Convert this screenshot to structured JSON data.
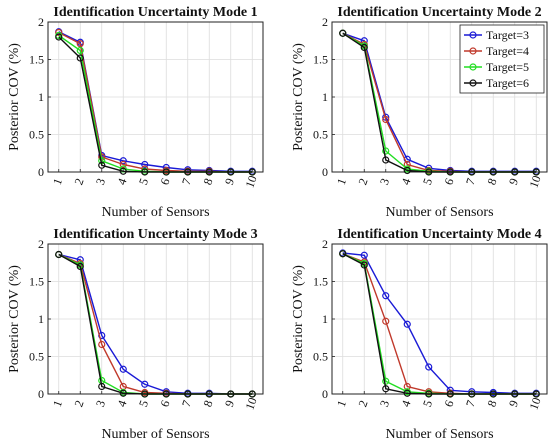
{
  "legend": {
    "placement": "top-right",
    "entries": [
      {
        "label": "Target=3",
        "color": "#1a1ad6"
      },
      {
        "label": "Target=4",
        "color": "#c0392b"
      },
      {
        "label": "Target=5",
        "color": "#22dd22"
      },
      {
        "label": "Target=6",
        "color": "#111111"
      }
    ]
  },
  "chart_data": [
    {
      "type": "line",
      "title": "Identification Uncertainty Mode 1",
      "xlabel": "Number of Sensors",
      "ylabel": "Posterior COV (%)",
      "ylim": [
        0,
        2
      ],
      "xlim": [
        0.5,
        10.5
      ],
      "x": [
        1,
        2,
        3,
        4,
        5,
        6,
        7,
        8,
        9,
        10
      ],
      "xticks": [
        "1",
        "2",
        "3",
        "4",
        "5",
        "6",
        "7",
        "8",
        "9",
        "10"
      ],
      "yticks": [
        "0",
        "0.5",
        "1",
        "1.5",
        "2"
      ],
      "grid": true,
      "series": [
        {
          "name": "Target=3",
          "color": "#1a1ad6",
          "values": [
            1.87,
            1.73,
            0.22,
            0.15,
            0.1,
            0.06,
            0.03,
            0.02,
            0.01,
            0.01
          ]
        },
        {
          "name": "Target=4",
          "color": "#c0392b",
          "values": [
            1.86,
            1.71,
            0.2,
            0.1,
            0.04,
            0.02,
            0.01,
            0.01,
            0.0,
            0.0
          ]
        },
        {
          "name": "Target=5",
          "color": "#22dd22",
          "values": [
            1.82,
            1.62,
            0.15,
            0.04,
            0.01,
            0.0,
            0.0,
            0.0,
            0.0,
            0.0
          ]
        },
        {
          "name": "Target=6",
          "color": "#111111",
          "values": [
            1.8,
            1.52,
            0.09,
            0.01,
            0.0,
            0.0,
            0.0,
            0.0,
            0.0,
            0.0
          ]
        }
      ]
    },
    {
      "type": "line",
      "title": "Identification Uncertainty Mode 2",
      "xlabel": "Number of Sensors",
      "ylabel": "Posterior COV (%)",
      "ylim": [
        0,
        2
      ],
      "xlim": [
        0.5,
        10.5
      ],
      "x": [
        1,
        2,
        3,
        4,
        5,
        6,
        7,
        8,
        9,
        10
      ],
      "xticks": [
        "1",
        "2",
        "3",
        "4",
        "5",
        "6",
        "7",
        "8",
        "9",
        "10"
      ],
      "yticks": [
        "0",
        "0.5",
        "1",
        "1.5",
        "2"
      ],
      "grid": true,
      "series": [
        {
          "name": "Target=3",
          "color": "#1a1ad6",
          "values": [
            1.85,
            1.75,
            0.73,
            0.17,
            0.05,
            0.02,
            0.01,
            0.01,
            0.01,
            0.01
          ]
        },
        {
          "name": "Target=4",
          "color": "#c0392b",
          "values": [
            1.85,
            1.7,
            0.7,
            0.1,
            0.02,
            0.01,
            0.0,
            0.0,
            0.0,
            0.0
          ]
        },
        {
          "name": "Target=5",
          "color": "#22dd22",
          "values": [
            1.85,
            1.68,
            0.28,
            0.04,
            0.01,
            0.0,
            0.0,
            0.0,
            0.0,
            0.0
          ]
        },
        {
          "name": "Target=6",
          "color": "#111111",
          "values": [
            1.85,
            1.66,
            0.16,
            0.02,
            0.0,
            0.0,
            0.0,
            0.0,
            0.0,
            0.0
          ]
        }
      ]
    },
    {
      "type": "line",
      "title": "Identification Uncertainty Mode 3",
      "xlabel": "Number of Sensors",
      "ylabel": "Posterior COV (%)",
      "ylim": [
        0,
        2
      ],
      "xlim": [
        0.5,
        10.5
      ],
      "x": [
        1,
        2,
        3,
        4,
        5,
        6,
        7,
        8,
        9,
        10
      ],
      "xticks": [
        "1",
        "2",
        "3",
        "4",
        "5",
        "6",
        "7",
        "8",
        "9",
        "10"
      ],
      "yticks": [
        "0",
        "0.5",
        "1",
        "1.5",
        "2"
      ],
      "grid": true,
      "series": [
        {
          "name": "Target=3",
          "color": "#1a1ad6",
          "values": [
            1.86,
            1.79,
            0.78,
            0.33,
            0.13,
            0.03,
            0.01,
            0.01,
            0.0,
            0.0
          ]
        },
        {
          "name": "Target=4",
          "color": "#c0392b",
          "values": [
            1.86,
            1.74,
            0.66,
            0.1,
            0.02,
            0.01,
            0.0,
            0.0,
            0.0,
            0.0
          ]
        },
        {
          "name": "Target=5",
          "color": "#22dd22",
          "values": [
            1.86,
            1.72,
            0.18,
            0.02,
            0.0,
            0.0,
            0.0,
            0.0,
            0.0,
            0.0
          ]
        },
        {
          "name": "Target=6",
          "color": "#111111",
          "values": [
            1.86,
            1.7,
            0.1,
            0.01,
            0.0,
            0.0,
            0.0,
            0.0,
            0.0,
            0.0
          ]
        }
      ]
    },
    {
      "type": "line",
      "title": "Identification Uncertainty Mode 4",
      "xlabel": "Number of Sensors",
      "ylabel": "Posterior COV (%)",
      "ylim": [
        0,
        2
      ],
      "xlim": [
        0.5,
        10.5
      ],
      "x": [
        1,
        2,
        3,
        4,
        5,
        6,
        7,
        8,
        9,
        10
      ],
      "xticks": [
        "1",
        "2",
        "3",
        "4",
        "5",
        "6",
        "7",
        "8",
        "9",
        "10"
      ],
      "yticks": [
        "0",
        "0.5",
        "1",
        "1.5",
        "2"
      ],
      "grid": true,
      "series": [
        {
          "name": "Target=3",
          "color": "#1a1ad6",
          "values": [
            1.88,
            1.85,
            1.31,
            0.93,
            0.36,
            0.05,
            0.03,
            0.02,
            0.01,
            0.01
          ]
        },
        {
          "name": "Target=4",
          "color": "#c0392b",
          "values": [
            1.87,
            1.76,
            0.97,
            0.1,
            0.03,
            0.01,
            0.0,
            0.0,
            0.0,
            0.0
          ]
        },
        {
          "name": "Target=5",
          "color": "#22dd22",
          "values": [
            1.87,
            1.74,
            0.17,
            0.03,
            0.01,
            0.0,
            0.0,
            0.0,
            0.0,
            0.0
          ]
        },
        {
          "name": "Target=6",
          "color": "#111111",
          "values": [
            1.87,
            1.72,
            0.07,
            0.01,
            0.0,
            0.0,
            0.0,
            0.0,
            0.0,
            0.0
          ]
        }
      ]
    }
  ]
}
